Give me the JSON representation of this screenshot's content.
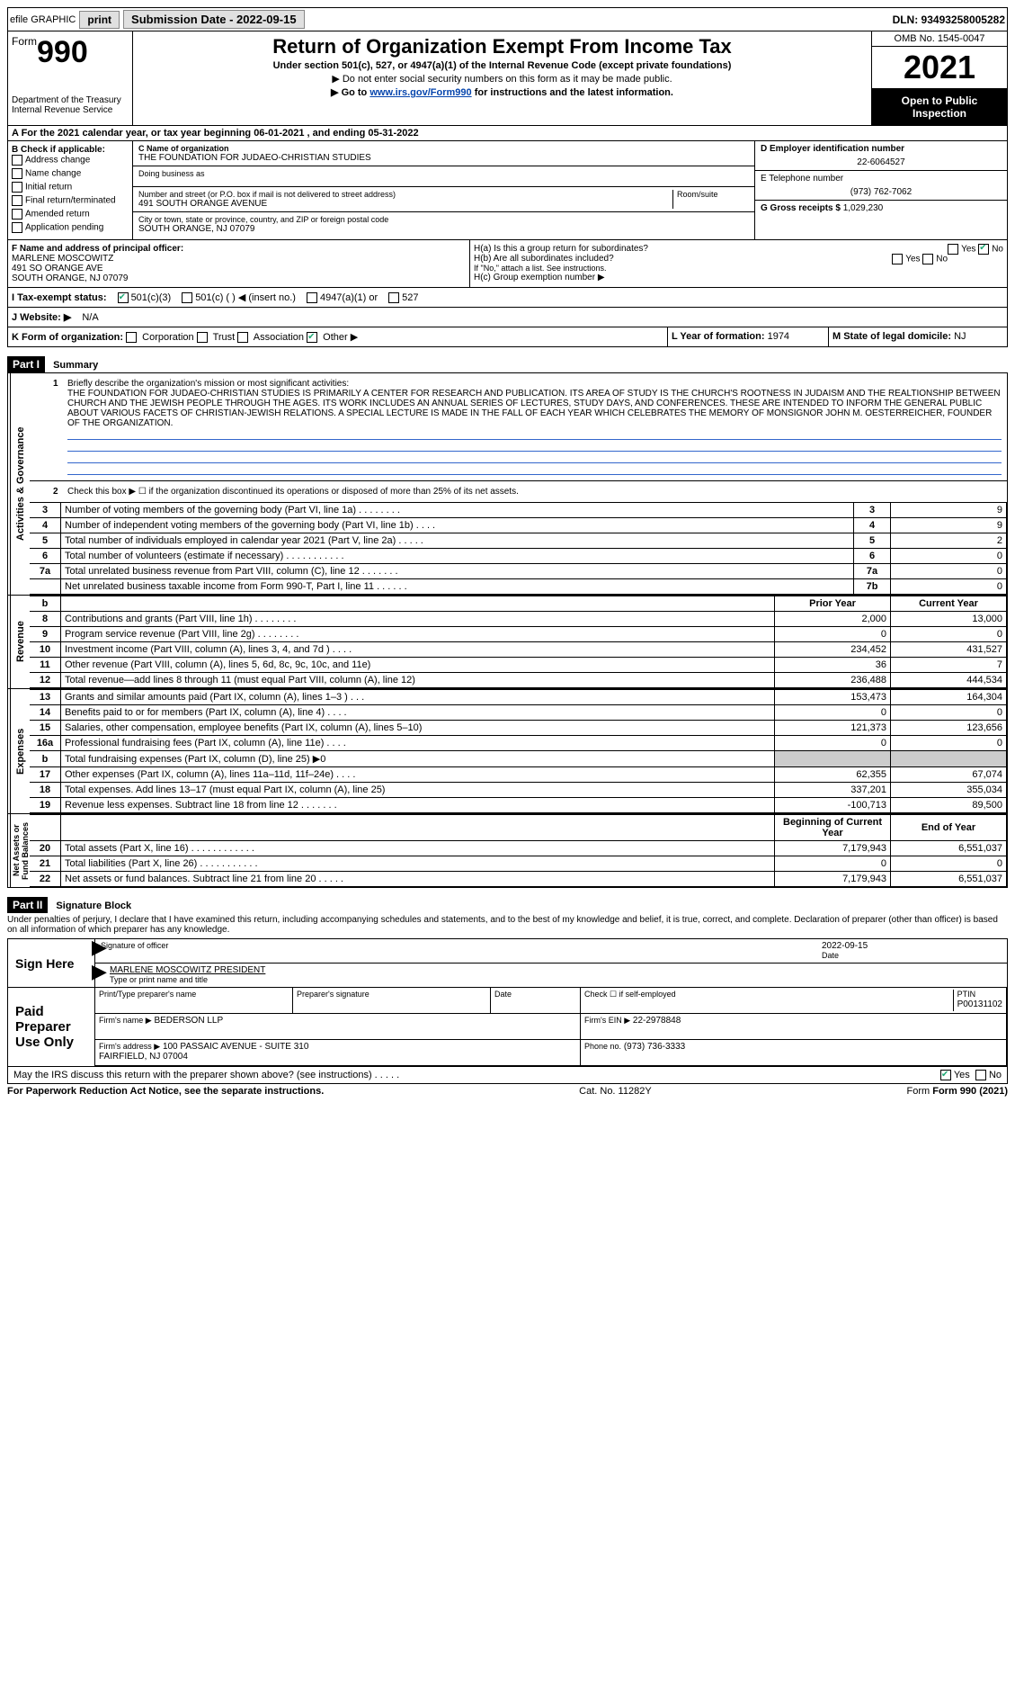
{
  "topbar": {
    "efile": "efile GRAPHIC",
    "print": "print",
    "sub_label": "Submission Date - 2022-09-15",
    "dln": "DLN: 93493258005282"
  },
  "header": {
    "form_word": "Form",
    "form_num": "990",
    "dept": "Department of the Treasury\nInternal Revenue Service",
    "title": "Return of Organization Exempt From Income Tax",
    "subtitle": "Under section 501(c), 527, or 4947(a)(1) of the Internal Revenue Code (except private foundations)",
    "note1": "▶ Do not enter social security numbers on this form as it may be made public.",
    "note2_pre": "▶ Go to ",
    "note2_link": "www.irs.gov/Form990",
    "note2_post": " for instructions and the latest information.",
    "omb": "OMB No. 1545-0047",
    "year": "2021",
    "openpub": "Open to Public Inspection"
  },
  "row_a": "A For the 2021 calendar year, or tax year beginning 06-01-2021  , and ending 05-31-2022",
  "col_b": {
    "title": "B Check if applicable:",
    "items": [
      "Address change",
      "Name change",
      "Initial return",
      "Final return/terminated",
      "Amended return",
      "Application pending"
    ]
  },
  "col_c": {
    "name_lbl": "C Name of organization",
    "name": "THE FOUNDATION FOR JUDAEO-CHRISTIAN STUDIES",
    "dba_lbl": "Doing business as",
    "dba": "",
    "addr_lbl": "Number and street (or P.O. box if mail is not delivered to street address)",
    "room_lbl": "Room/suite",
    "addr": "491 SOUTH ORANGE AVENUE",
    "city_lbl": "City or town, state or province, country, and ZIP or foreign postal code",
    "city": "SOUTH ORANGE, NJ  07079"
  },
  "col_right": {
    "d_lbl": "D Employer identification number",
    "d_val": "22-6064527",
    "e_lbl": "E Telephone number",
    "e_val": "(973) 762-7062",
    "g_lbl": "G Gross receipts $",
    "g_val": "1,029,230"
  },
  "principal": {
    "f_lbl": "F  Name and address of principal officer:",
    "name": "MARLENE MOSCOWITZ",
    "addr1": "491 SO ORANGE AVE",
    "addr2": "SOUTH ORANGE, NJ  07079",
    "ha": "H(a)  Is this a group return for subordinates?",
    "ha_yes": "Yes",
    "ha_no": "No",
    "hb": "H(b)  Are all subordinates included?",
    "hb_note": "If \"No,\" attach a list. See instructions.",
    "hc": "H(c)  Group exemption number ▶"
  },
  "status": {
    "i_lbl": "I  Tax-exempt status:",
    "opts": [
      "501(c)(3)",
      "501(c) (  ) ◀ (insert no.)",
      "4947(a)(1) or",
      "527"
    ],
    "j_lbl": "J  Website: ▶",
    "j_val": "N/A"
  },
  "kl": {
    "k_lbl": "K Form of organization:",
    "k_opts": [
      "Corporation",
      "Trust",
      "Association",
      "Other ▶"
    ],
    "l_lbl": "L Year of formation:",
    "l_val": "1974",
    "m_lbl": "M State of legal domicile:",
    "m_val": "NJ"
  },
  "part1": {
    "hdr": "Part I",
    "title": "Summary",
    "q1_lbl": "Briefly describe the organization's mission or most significant activities:",
    "q1_text": "THE FOUNDATION FOR JUDAEO-CHRISTIAN STUDIES IS PRIMARILY A CENTER FOR RESEARCH AND PUBLICATION. ITS AREA OF STUDY IS THE CHURCH'S ROOTNESS IN JUDAISM AND THE REALTIONSHIP BETWEEN CHURCH AND THE JEWISH PEOPLE THROUGH THE AGES. ITS WORK INCLUDES AN ANNUAL SERIES OF LECTURES, STUDY DAYS, AND CONFERENCES. THESE ARE INTENDED TO INFORM THE GENERAL PUBLIC ABOUT VARIOUS FACETS OF CHRISTIAN-JEWISH RELATIONS. A SPECIAL LECTURE IS MADE IN THE FALL OF EACH YEAR WHICH CELEBRATES THE MEMORY OF MONSIGNOR JOHN M. OESTERREICHER, FOUNDER OF THE ORGANIZATION.",
    "q2": "Check this box ▶ ☐ if the organization discontinued its operations or disposed of more than 25% of its net assets.",
    "vlabel_gov": "Activities & Governance",
    "vlabel_rev": "Revenue",
    "vlabel_exp": "Expenses",
    "vlabel_net": "Net Assets or Fund Balances",
    "gov_rows": [
      {
        "n": "3",
        "d": "Number of voting members of the governing body (Part VI, line 1a)  .   .   .   .   .   .   .   .",
        "box": "3",
        "v": "9"
      },
      {
        "n": "4",
        "d": "Number of independent voting members of the governing body (Part VI, line 1b)   .   .   .   .",
        "box": "4",
        "v": "9"
      },
      {
        "n": "5",
        "d": "Total number of individuals employed in calendar year 2021 (Part V, line 2a)   .   .   .   .   .",
        "box": "5",
        "v": "2"
      },
      {
        "n": "6",
        "d": "Total number of volunteers (estimate if necessary)   .   .   .   .   .   .   .   .   .   .   .",
        "box": "6",
        "v": "0"
      },
      {
        "n": "7a",
        "d": "Total unrelated business revenue from Part VIII, column (C), line 12   .   .   .   .   .   .   .",
        "box": "7a",
        "v": "0"
      },
      {
        "n": "",
        "d": "Net unrelated business taxable income from Form 990-T, Part I, line 11   .   .   .   .   .   .",
        "box": "7b",
        "v": "0"
      }
    ],
    "col_hdr_prior": "Prior Year",
    "col_hdr_curr": "Current Year",
    "rev_rows": [
      {
        "n": "8",
        "d": "Contributions and grants (Part VIII, line 1h)   .   .   .   .   .   .   .   .",
        "p": "2,000",
        "c": "13,000"
      },
      {
        "n": "9",
        "d": "Program service revenue (Part VIII, line 2g)   .   .   .   .   .   .   .   .",
        "p": "0",
        "c": "0"
      },
      {
        "n": "10",
        "d": "Investment income (Part VIII, column (A), lines 3, 4, and 7d )   .   .   .   .",
        "p": "234,452",
        "c": "431,527"
      },
      {
        "n": "11",
        "d": "Other revenue (Part VIII, column (A), lines 5, 6d, 8c, 9c, 10c, and 11e)",
        "p": "36",
        "c": "7"
      },
      {
        "n": "12",
        "d": "Total revenue—add lines 8 through 11 (must equal Part VIII, column (A), line 12)",
        "p": "236,488",
        "c": "444,534"
      }
    ],
    "exp_rows": [
      {
        "n": "13",
        "d": "Grants and similar amounts paid (Part IX, column (A), lines 1–3 )   .   .   .",
        "p": "153,473",
        "c": "164,304"
      },
      {
        "n": "14",
        "d": "Benefits paid to or for members (Part IX, column (A), line 4)   .   .   .   .",
        "p": "0",
        "c": "0"
      },
      {
        "n": "15",
        "d": "Salaries, other compensation, employee benefits (Part IX, column (A), lines 5–10)",
        "p": "121,373",
        "c": "123,656"
      },
      {
        "n": "16a",
        "d": "Professional fundraising fees (Part IX, column (A), line 11e)   .   .   .   .",
        "p": "0",
        "c": "0"
      },
      {
        "n": "b",
        "d": "Total fundraising expenses (Part IX, column (D), line 25) ▶0",
        "p": "",
        "c": "",
        "shade": true
      },
      {
        "n": "17",
        "d": "Other expenses (Part IX, column (A), lines 11a–11d, 11f–24e)   .   .   .   .",
        "p": "62,355",
        "c": "67,074"
      },
      {
        "n": "18",
        "d": "Total expenses. Add lines 13–17 (must equal Part IX, column (A), line 25)",
        "p": "337,201",
        "c": "355,034"
      },
      {
        "n": "19",
        "d": "Revenue less expenses. Subtract line 18 from line 12   .   .   .   .   .   .   .",
        "p": "-100,713",
        "c": "89,500"
      }
    ],
    "col_hdr_beg": "Beginning of Current Year",
    "col_hdr_end": "End of Year",
    "net_rows": [
      {
        "n": "20",
        "d": "Total assets (Part X, line 16)   .   .   .   .   .   .   .   .   .   .   .   .",
        "p": "7,179,943",
        "c": "6,551,037"
      },
      {
        "n": "21",
        "d": "Total liabilities (Part X, line 26)   .   .   .   .   .   .   .   .   .   .   .",
        "p": "0",
        "c": "0"
      },
      {
        "n": "22",
        "d": "Net assets or fund balances. Subtract line 21 from line 20   .   .   .   .   .",
        "p": "7,179,943",
        "c": "6,551,037"
      }
    ]
  },
  "part2": {
    "hdr": "Part II",
    "title": "Signature Block",
    "decl": "Under penalties of perjury, I declare that I have examined this return, including accompanying schedules and statements, and to the best of my knowledge and belief, it is true, correct, and complete. Declaration of preparer (other than officer) is based on all information of which preparer has any knowledge.",
    "sign_here": "Sign Here",
    "sig_officer_lbl": "Signature of officer",
    "date_lbl": "Date",
    "sig_date": "2022-09-15",
    "name_title": "MARLENE MOSCOWITZ  PRESIDENT",
    "name_title_lbl": "Type or print name and title",
    "paid_prep": "Paid Preparer Use Only",
    "pt_name_lbl": "Print/Type preparer's name",
    "pt_sig_lbl": "Preparer's signature",
    "pt_date_lbl": "Date",
    "pt_chk_lbl": "Check ☐ if self-employed",
    "ptin_lbl": "PTIN",
    "ptin": "P00131102",
    "firm_name_lbl": "Firm's name   ▶",
    "firm_name": "BEDERSON LLP",
    "firm_ein_lbl": "Firm's EIN ▶",
    "firm_ein": "22-2978848",
    "firm_addr_lbl": "Firm's address ▶",
    "firm_addr": "100 PASSAIC AVENUE - SUITE 310\nFAIRFIELD, NJ  07004",
    "phone_lbl": "Phone no.",
    "phone": "(973) 736-3333",
    "discuss": "May the IRS discuss this return with the preparer shown above? (see instructions)   .   .   .   .   .",
    "yes": "Yes",
    "no": "No"
  },
  "footer": {
    "pra": "For Paperwork Reduction Act Notice, see the separate instructions.",
    "cat": "Cat. No. 11282Y",
    "form": "Form 990 (2021)"
  }
}
